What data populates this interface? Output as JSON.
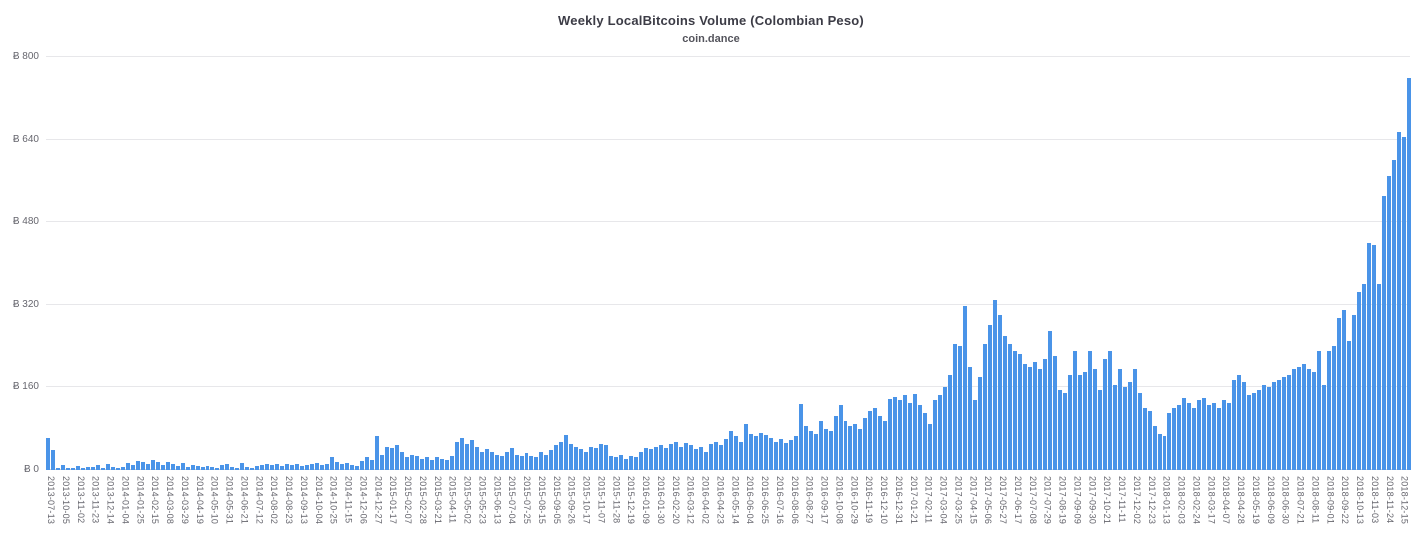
{
  "chart": {
    "title": "Weekly LocalBitcoins Volume (Colombian Peso)",
    "subtitle": "coin.dance"
  },
  "chart_data": {
    "type": "bar",
    "title": "Weekly LocalBitcoins Volume (Colombian Peso)",
    "subtitle": "coin.dance",
    "xlabel": "",
    "ylabel": "",
    "ylim": [
      0,
      800
    ],
    "grid": true,
    "legend": "none",
    "bar_color": "#4a94e8",
    "currency_symbol": "Ƀ",
    "y_ticks": [
      {
        "label": "Ƀ 0",
        "value": 0
      },
      {
        "label": "Ƀ 160",
        "value": 160
      },
      {
        "label": "Ƀ 320",
        "value": 320
      },
      {
        "label": "Ƀ 480",
        "value": 480
      },
      {
        "label": "Ƀ 640",
        "value": 640
      },
      {
        "label": "Ƀ 800",
        "value": 800
      }
    ],
    "x_tick_every": 3,
    "x_tick_labels": [
      "2013-07-13",
      "2013-10-05",
      "2013-11-02",
      "2013-11-23",
      "2013-12-14",
      "2014-01-04",
      "2014-01-25",
      "2014-02-15",
      "2014-03-08",
      "2014-03-29",
      "2014-04-19",
      "2014-05-10",
      "2014-05-31",
      "2014-06-21",
      "2014-07-12",
      "2014-08-02",
      "2014-08-23",
      "2014-09-13",
      "2014-10-04",
      "2014-10-25",
      "2014-11-15",
      "2014-12-06",
      "2014-12-27",
      "2015-01-17",
      "2015-02-07",
      "2015-02-28",
      "2015-03-21",
      "2015-04-11",
      "2015-05-02",
      "2015-05-23",
      "2015-06-13",
      "2015-07-04",
      "2015-07-25",
      "2015-08-15",
      "2015-09-05",
      "2015-09-26",
      "2015-10-17",
      "2015-11-07",
      "2015-11-28",
      "2015-12-19",
      "2016-01-09",
      "2016-01-30",
      "2016-02-20",
      "2016-03-12",
      "2016-04-02",
      "2016-04-23",
      "2016-05-14",
      "2016-06-04",
      "2016-06-25",
      "2016-07-16",
      "2016-08-06",
      "2016-08-27",
      "2016-09-17",
      "2016-10-08",
      "2016-10-29",
      "2016-11-19",
      "2016-12-10",
      "2016-12-31",
      "2017-01-21",
      "2017-02-11",
      "2017-03-04",
      "2017-03-25",
      "2017-04-15",
      "2017-05-06",
      "2017-05-27",
      "2017-06-17",
      "2017-07-08",
      "2017-07-29",
      "2017-08-19",
      "2017-09-09",
      "2017-09-30",
      "2017-10-21",
      "2017-11-11",
      "2017-12-02",
      "2017-12-23",
      "2018-01-13",
      "2018-02-03",
      "2018-02-24",
      "2018-03-17",
      "2018-04-07",
      "2018-04-28",
      "2018-05-19",
      "2018-06-09",
      "2018-06-30",
      "2018-07-21",
      "2018-08-11",
      "2018-09-01",
      "2018-09-22",
      "2018-10-13",
      "2018-11-03",
      "2018-11-24",
      "2018-12-15"
    ],
    "values": [
      62,
      38,
      3,
      10,
      4,
      3,
      8,
      3,
      5,
      6,
      10,
      4,
      12,
      6,
      4,
      6,
      14,
      10,
      18,
      16,
      12,
      20,
      15,
      10,
      16,
      12,
      8,
      14,
      6,
      10,
      8,
      5,
      8,
      6,
      4,
      10,
      12,
      5,
      4,
      14,
      6,
      4,
      8,
      10,
      12,
      10,
      12,
      8,
      12,
      10,
      12,
      8,
      10,
      12,
      14,
      10,
      12,
      25,
      16,
      12,
      14,
      10,
      8,
      18,
      25,
      20,
      65,
      30,
      45,
      42,
      48,
      35,
      25,
      30,
      28,
      22,
      25,
      20,
      25,
      22,
      20,
      28,
      55,
      62,
      50,
      58,
      45,
      35,
      40,
      35,
      30,
      28,
      35,
      42,
      30,
      28,
      32,
      28,
      25,
      35,
      30,
      38,
      48,
      55,
      68,
      50,
      45,
      40,
      35,
      45,
      42,
      50,
      48,
      28,
      25,
      30,
      22,
      28,
      25,
      35,
      42,
      40,
      45,
      48,
      42,
      50,
      55,
      45,
      52,
      48,
      40,
      45,
      35,
      50,
      55,
      48,
      60,
      75,
      65,
      55,
      90,
      70,
      65,
      72,
      68,
      62,
      55,
      60,
      52,
      58,
      65,
      128,
      85,
      75,
      70,
      95,
      80,
      75,
      105,
      125,
      95,
      85,
      90,
      80,
      100,
      115,
      120,
      105,
      95,
      138,
      142,
      135,
      145,
      130,
      148,
      125,
      110,
      90,
      135,
      145,
      160,
      185,
      245,
      240,
      318,
      200,
      135,
      180,
      245,
      280,
      330,
      300,
      260,
      245,
      230,
      225,
      205,
      200,
      210,
      195,
      215,
      270,
      220,
      155,
      150,
      185,
      230,
      185,
      190,
      230,
      195,
      155,
      215,
      230,
      165,
      195,
      160,
      170,
      195,
      150,
      120,
      115,
      85,
      70,
      65,
      110,
      120,
      125,
      140,
      130,
      120,
      135,
      140,
      125,
      130,
      120,
      135,
      130,
      175,
      185,
      170,
      145,
      150,
      155,
      165,
      160,
      170,
      175,
      180,
      185,
      195,
      200,
      205,
      195,
      190,
      230,
      165,
      230,
      240,
      295,
      310,
      250,
      300,
      345,
      360,
      440,
      435,
      360,
      530,
      570,
      600,
      655,
      645,
      760
    ]
  }
}
